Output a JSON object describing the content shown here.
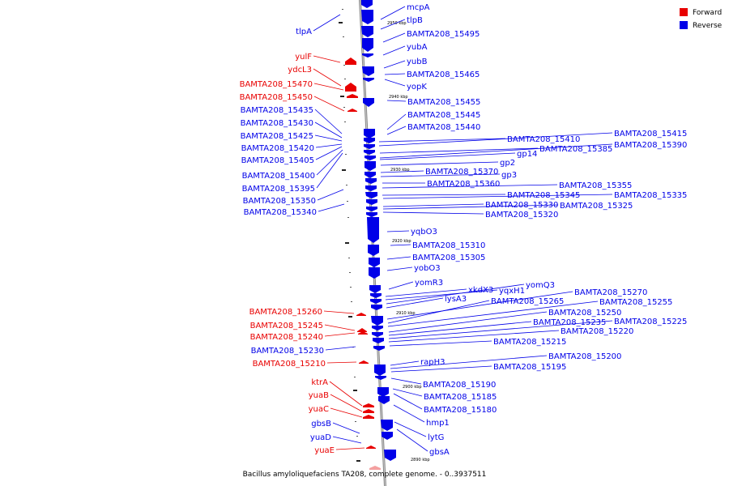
{
  "colors": {
    "forward": "#e80000",
    "reverse": "#0000e8",
    "backbone": "#888888",
    "line": "#2a2ad8"
  },
  "legend": [
    {
      "label": "Forward",
      "color": "#e80000"
    },
    {
      "label": "Reverse",
      "color": "#0000e8"
    }
  ],
  "caption": "Bacillus amyloliquefaciens TA208, complete genome. - 0..3937511",
  "ticks": [
    "2950 kbp",
    "2940 kbp",
    "2930 kbp",
    "2920 kbp",
    "2910 kbp",
    "2900 kbp",
    "2890 kbp"
  ],
  "left_labels": [
    {
      "text": "tlpA",
      "strand": "reverse"
    },
    {
      "text": "yulF",
      "strand": "forward"
    },
    {
      "text": "ydcL3",
      "strand": "forward"
    },
    {
      "text": "BAMTA208_15470",
      "strand": "forward"
    },
    {
      "text": "BAMTA208_15450",
      "strand": "forward"
    },
    {
      "text": "BAMTA208_15435",
      "strand": "reverse"
    },
    {
      "text": "BAMTA208_15430",
      "strand": "reverse"
    },
    {
      "text": "BAMTA208_15425",
      "strand": "reverse"
    },
    {
      "text": "BAMTA208_15420",
      "strand": "reverse"
    },
    {
      "text": "BAMTA208_15405",
      "strand": "reverse"
    },
    {
      "text": "BAMTA208_15400",
      "strand": "reverse"
    },
    {
      "text": "BAMTA208_15395",
      "strand": "reverse"
    },
    {
      "text": "BAMTA208_15350",
      "strand": "reverse"
    },
    {
      "text": "BAMTA208_15340",
      "strand": "reverse"
    },
    {
      "text": "BAMTA208_15260",
      "strand": "forward"
    },
    {
      "text": "BAMTA208_15245",
      "strand": "forward"
    },
    {
      "text": "BAMTA208_15240",
      "strand": "forward"
    },
    {
      "text": "BAMTA208_15230",
      "strand": "reverse"
    },
    {
      "text": "BAMTA208_15210",
      "strand": "forward"
    },
    {
      "text": "ktrA",
      "strand": "forward"
    },
    {
      "text": "yuaB",
      "strand": "forward"
    },
    {
      "text": "yuaC",
      "strand": "forward"
    },
    {
      "text": "gbsB",
      "strand": "reverse"
    },
    {
      "text": "yuaD",
      "strand": "reverse"
    },
    {
      "text": "yuaE",
      "strand": "forward"
    }
  ],
  "right_labels": [
    {
      "text": "mcpA",
      "strand": "reverse"
    },
    {
      "text": "tlpB",
      "strand": "reverse"
    },
    {
      "text": "BAMTA208_15495",
      "strand": "reverse"
    },
    {
      "text": "yubA",
      "strand": "reverse"
    },
    {
      "text": "yubB",
      "strand": "reverse"
    },
    {
      "text": "BAMTA208_15465",
      "strand": "reverse"
    },
    {
      "text": "yopK",
      "strand": "reverse"
    },
    {
      "text": "BAMTA208_15455",
      "strand": "reverse"
    },
    {
      "text": "BAMTA208_15445",
      "strand": "reverse"
    },
    {
      "text": "BAMTA208_15440",
      "strand": "reverse"
    },
    {
      "text": "BAMTA208_15410",
      "strand": "reverse"
    },
    {
      "text": "BAMTA208_15415",
      "strand": "reverse"
    },
    {
      "text": "BAMTA208_15385",
      "strand": "reverse"
    },
    {
      "text": "BAMTA208_15390",
      "strand": "reverse"
    },
    {
      "text": "gp14",
      "strand": "reverse"
    },
    {
      "text": "gp2",
      "strand": "reverse"
    },
    {
      "text": "BAMTA208_15370",
      "strand": "reverse"
    },
    {
      "text": "gp3",
      "strand": "reverse"
    },
    {
      "text": "BAMTA208_15360",
      "strand": "reverse"
    },
    {
      "text": "BAMTA208_15355",
      "strand": "reverse"
    },
    {
      "text": "BAMTA208_15345",
      "strand": "reverse"
    },
    {
      "text": "BAMTA208_15335",
      "strand": "reverse"
    },
    {
      "text": "BAMTA208_15330",
      "strand": "reverse"
    },
    {
      "text": "BAMTA208_15325",
      "strand": "reverse"
    },
    {
      "text": "BAMTA208_15320",
      "strand": "reverse"
    },
    {
      "text": "yqbO3",
      "strand": "reverse"
    },
    {
      "text": "BAMTA208_15310",
      "strand": "reverse"
    },
    {
      "text": "BAMTA208_15305",
      "strand": "reverse"
    },
    {
      "text": "yobO3",
      "strand": "reverse"
    },
    {
      "text": "yomR3",
      "strand": "reverse"
    },
    {
      "text": "xkdX3",
      "strand": "reverse"
    },
    {
      "text": "yqxH1",
      "strand": "reverse"
    },
    {
      "text": "yomQ3",
      "strand": "reverse"
    },
    {
      "text": "lysA3",
      "strand": "reverse"
    },
    {
      "text": "BAMTA208_15270",
      "strand": "reverse"
    },
    {
      "text": "BAMTA208_15265",
      "strand": "reverse"
    },
    {
      "text": "BAMTA208_15255",
      "strand": "reverse"
    },
    {
      "text": "BAMTA208_15250",
      "strand": "reverse"
    },
    {
      "text": "BAMTA208_15235",
      "strand": "reverse"
    },
    {
      "text": "BAMTA208_15225",
      "strand": "reverse"
    },
    {
      "text": "BAMTA208_15220",
      "strand": "reverse"
    },
    {
      "text": "BAMTA208_15215",
      "strand": "reverse"
    },
    {
      "text": "rapH3",
      "strand": "reverse"
    },
    {
      "text": "BAMTA208_15200",
      "strand": "reverse"
    },
    {
      "text": "BAMTA208_15195",
      "strand": "reverse"
    },
    {
      "text": "BAMTA208_15190",
      "strand": "reverse"
    },
    {
      "text": "BAMTA208_15185",
      "strand": "reverse"
    },
    {
      "text": "BAMTA208_15180",
      "strand": "reverse"
    },
    {
      "text": "hmp1",
      "strand": "reverse"
    },
    {
      "text": "lytG",
      "strand": "reverse"
    },
    {
      "text": "gbsA",
      "strand": "reverse"
    }
  ]
}
